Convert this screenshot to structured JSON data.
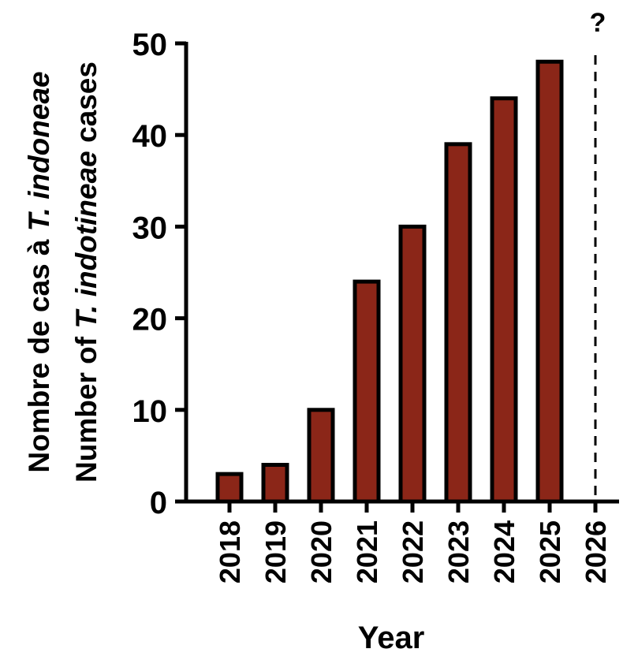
{
  "chart_data": {
    "type": "bar",
    "categories": [
      "2018",
      "2019",
      "2020",
      "2021",
      "2022",
      "2023",
      "2024",
      "2025",
      "2026"
    ],
    "values": [
      3,
      4,
      10,
      24,
      30,
      39,
      44,
      48,
      null
    ],
    "projected_marker": {
      "category": "2026",
      "label": "?"
    },
    "title": "",
    "xlabel": "Year",
    "ylabel": "Number of T. indotineae cases",
    "ylabel_fr": "Nombre de cas à T. indoneae",
    "ylabel_parts": {
      "fr": {
        "plain": "Nombre de cas à ",
        "italic": "T. indoneae"
      },
      "en": {
        "prefix": "Number of ",
        "italic": "T. indotineae",
        "suffix": " cases"
      }
    },
    "ylim": [
      0,
      50
    ],
    "yticks": [
      0,
      10,
      20,
      30,
      40,
      50
    ],
    "grid": false,
    "legend": "none",
    "colors": {
      "bar_fill": "#8B2618",
      "bar_edge": "#000000",
      "axis": "#000000"
    }
  }
}
